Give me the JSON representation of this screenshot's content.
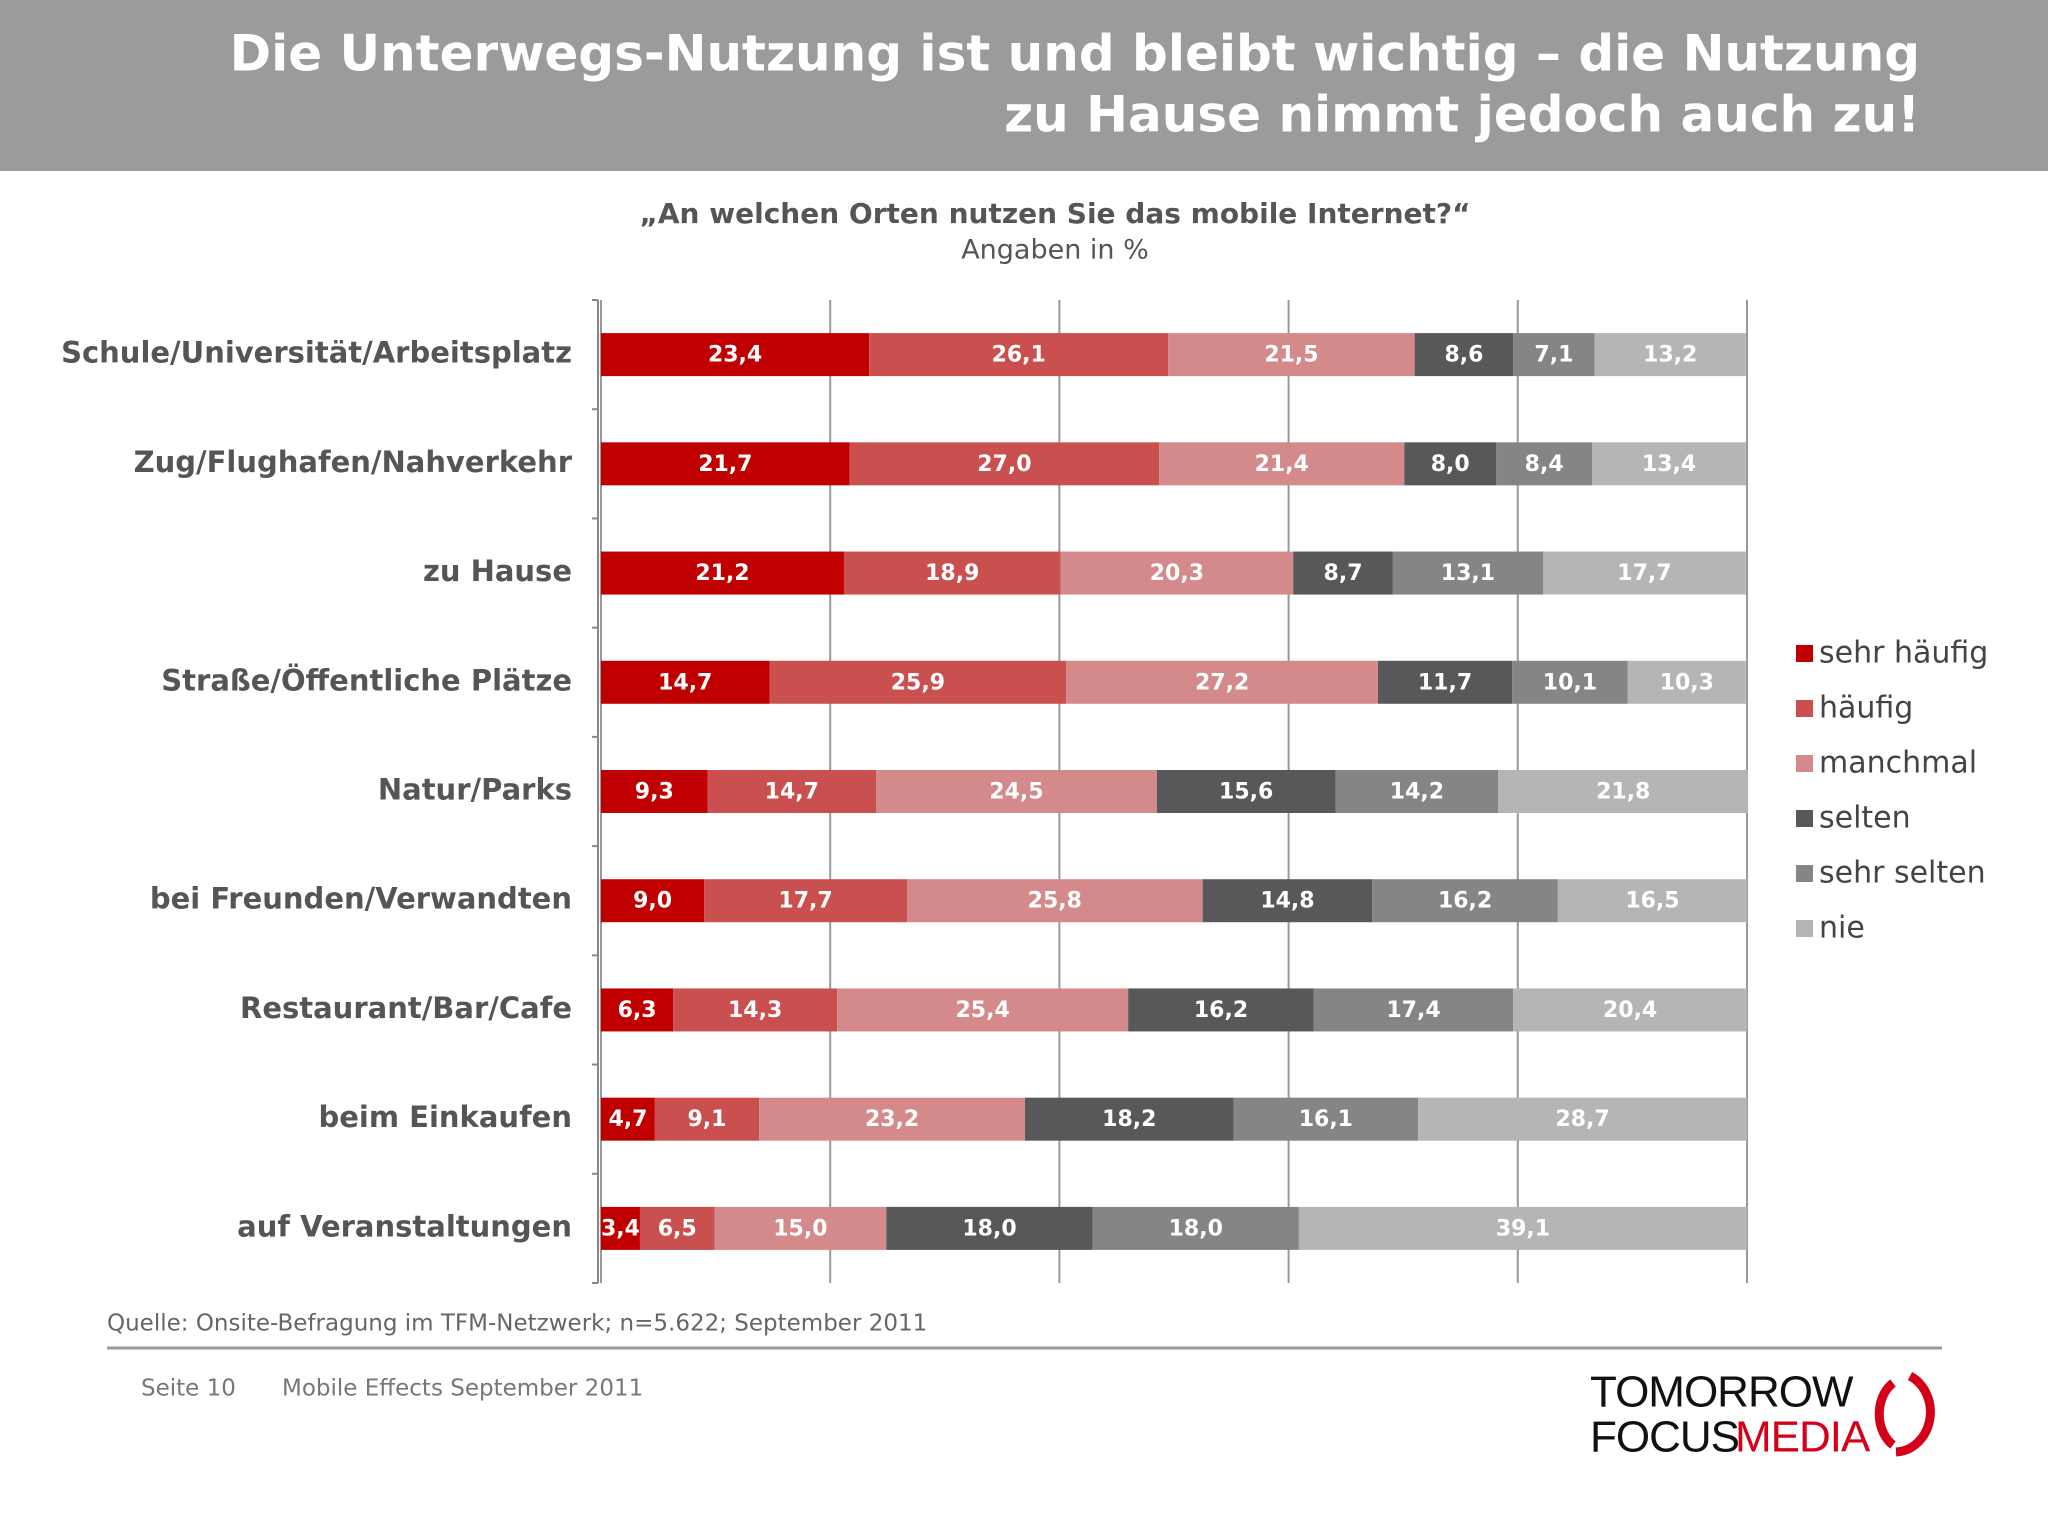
{
  "header": {
    "title_lines": [
      "Die Unterwegs-Nutzung ist und bleibt wichtig – die Nutzung",
      "zu Hause nimmt jedoch auch zu!"
    ]
  },
  "chart_data": {
    "type": "stacked-bar-horizontal",
    "title": "„An welchen Orten nutzen Sie das mobile Internet?“",
    "subtitle": "Angaben in %",
    "source": "Quelle: Onsite-Befragung im TFM-Netzwerk; n=5.622; September 2011",
    "categories": [
      "Schule/Universität/Arbeitsplatz",
      "Zug/Flughafen/Nahverkehr",
      "zu Hause",
      "Straße/Öffentliche Plätze",
      "Natur/Parks",
      "bei Freunden/Verwandten",
      "Restaurant/Bar/Cafe",
      "beim Einkaufen",
      "auf Veranstaltungen"
    ],
    "xlim": [
      0,
      100
    ],
    "xticks": [
      0,
      20,
      40,
      60,
      80,
      100
    ],
    "grid": true,
    "legend": "right",
    "series": [
      {
        "name": "sehr häufig",
        "color": "#c00000",
        "values": [
          23.4,
          21.7,
          21.2,
          14.7,
          9.3,
          9.0,
          6.3,
          4.7,
          3.4
        ],
        "value_labels": [
          "23,4",
          "21,7",
          "21,2",
          "14,7",
          "9,3",
          "9,0",
          "6,3",
          "4,7",
          "3,4"
        ]
      },
      {
        "name": "häufig",
        "color": "#c9504f",
        "values": [
          26.1,
          27.0,
          18.9,
          25.9,
          14.7,
          17.7,
          14.3,
          9.1,
          6.5
        ],
        "value_labels": [
          "26,1",
          "27,0",
          "18,9",
          "25,9",
          "14,7",
          "17,7",
          "14,3",
          "9,1",
          "6,5"
        ]
      },
      {
        "name": "manchmal",
        "color": "#d4898a",
        "values": [
          21.5,
          21.4,
          20.3,
          27.2,
          24.5,
          25.8,
          25.4,
          23.2,
          15.0
        ],
        "value_labels": [
          "21,5",
          "21,4",
          "20,3",
          "27,2",
          "24,5",
          "25,8",
          "25,4",
          "23,2",
          "15,0"
        ]
      },
      {
        "name": "selten",
        "color": "#58585a",
        "values": [
          8.6,
          8.0,
          8.7,
          11.7,
          15.6,
          14.8,
          16.2,
          18.2,
          18.0
        ],
        "value_labels": [
          "8,6",
          "8,0",
          "8,7",
          "11,7",
          "15,6",
          "14,8",
          "16,2",
          "18,2",
          "18,0"
        ]
      },
      {
        "name": "sehr selten",
        "color": "#858585",
        "values": [
          7.1,
          8.4,
          13.1,
          10.1,
          14.2,
          16.2,
          17.4,
          16.1,
          18.0
        ],
        "value_labels": [
          "7,1",
          "8,4",
          "13,1",
          "10,1",
          "14,2",
          "16,2",
          "17,4",
          "16,1",
          "18,0"
        ]
      },
      {
        "name": "nie",
        "color": "#b5b5b7",
        "values": [
          13.2,
          13.4,
          17.7,
          10.3,
          21.8,
          16.5,
          20.4,
          28.7,
          39.1
        ],
        "value_labels": [
          "13,2",
          "13,4",
          "17,7",
          "10,3",
          "21,8",
          "16,5",
          "20,4",
          "28,7",
          "39,1"
        ]
      }
    ]
  },
  "footer": {
    "page": "Seite 10",
    "label": "Mobile Effects September 2011"
  },
  "logo": {
    "line1": "TOMORROW",
    "focus": "FOCUS",
    "media": "MEDIA"
  }
}
